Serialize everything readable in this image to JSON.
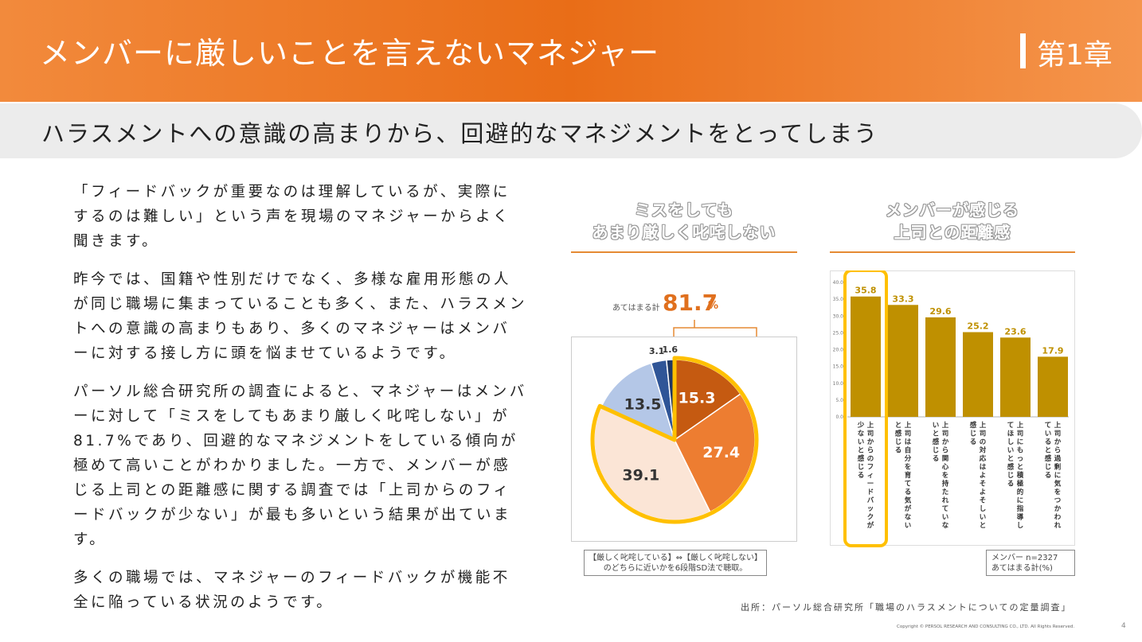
{
  "header": {
    "title": "メンバーに厳しいことを言えないマネジャー",
    "chapter": "第1章"
  },
  "subtitle": "ハラスメントへの意識の高まりから、回避的なマネジメントをとってしまう",
  "body": {
    "paragraphs": [
      "「フィードバックが重要なのは理解しているが、実際にするのは難しい」という声を現場のマネジャーからよく聞きます。",
      "昨今では、国籍や性別だけでなく、多様な雇用形態の人が同じ職場に集まっていることも多く、また、ハラスメントへの意識の高まりもあり、多くのマネジャーはメンバーに対する接し方に頭を悩ませているようです。",
      "パーソル総合研究所の調査によると、マネジャーはメンバーに対して「ミスをしてもあまり厳しく叱咤しない」が81.7%であり、回避的なマネジメントをしている傾向が極めて高いことがわかりました。一方で、メンバーが感じる上司との距離感に関する調査では「上司からのフィードバックが少ない」が最も多いという結果が出ています。",
      "多くの職場では、マネジャーのフィードバックが機能不全に陥っている状況のようです。"
    ]
  },
  "pie": {
    "title_line1": "ミスをしても",
    "title_line2": "あまり厳しく叱咤しない",
    "total_label": "あてはまる計",
    "total_value": "81.7",
    "total_unit": "%",
    "note_line1": "【厳しく叱咤している】⇔【厳しく叱咤しない】",
    "note_line2": "のどちらに近いかを6段階SD法で聴取。"
  },
  "bars": {
    "title_line1": "メンバーが感じる",
    "title_line2": "上司との距離感",
    "note_line1": "メンバー n=2327",
    "note_line2": "あてはまる計(%)"
  },
  "chart_data": [
    {
      "type": "pie",
      "title": "ミスをしても あまり厳しく叱咤しない",
      "values": [
        15.3,
        27.4,
        39.1,
        13.5,
        3.1,
        1.6
      ],
      "labels": [
        "15.3",
        "27.4",
        "39.1",
        "13.5",
        "3.1",
        "1.6"
      ],
      "colors": [
        "#c55a11",
        "#ed7d31",
        "#fbe5d6",
        "#b4c7e7",
        "#2f5597",
        "#1f3864"
      ],
      "label_colors": [
        "#ffffff",
        "#ffffff",
        "#333333",
        "#333333",
        "#333333",
        "#333333"
      ],
      "highlight_color": "#ffc000",
      "annotation": "あてはまる計 81.7%"
    },
    {
      "type": "bar",
      "title": "メンバーが感じる 上司との距離感",
      "categories": [
        "上司からのフィードバックが少ないと感じる",
        "上司は自分を育てる気がないと感じる",
        "上司から関心を持たれていないと感じる",
        "上司の対応はよそよそしいと感じる",
        "上司にもっと積極的に指導してほしいと感じる",
        "上司から過剰に気をつかわれていると感じる"
      ],
      "values": [
        35.8,
        33.3,
        29.6,
        25.2,
        23.6,
        17.9
      ],
      "yticks": [
        "0.0",
        "5.0",
        "10.0",
        "15.0",
        "20.0",
        "25.0",
        "30.0",
        "35.0",
        "40.0"
      ],
      "ylim": [
        0,
        40
      ],
      "bar_color": "#bf9000",
      "highlight_color": "#ffc000",
      "highlight_index": 0
    }
  ],
  "footer": {
    "source": "出所：パーソル総合研究所「職場のハラスメントについての定量調査」",
    "copyright": "Copyright © PERSOL RESEARCH AND CONSULTING CO., LTD. All Rights Reserved.",
    "page": "4"
  }
}
